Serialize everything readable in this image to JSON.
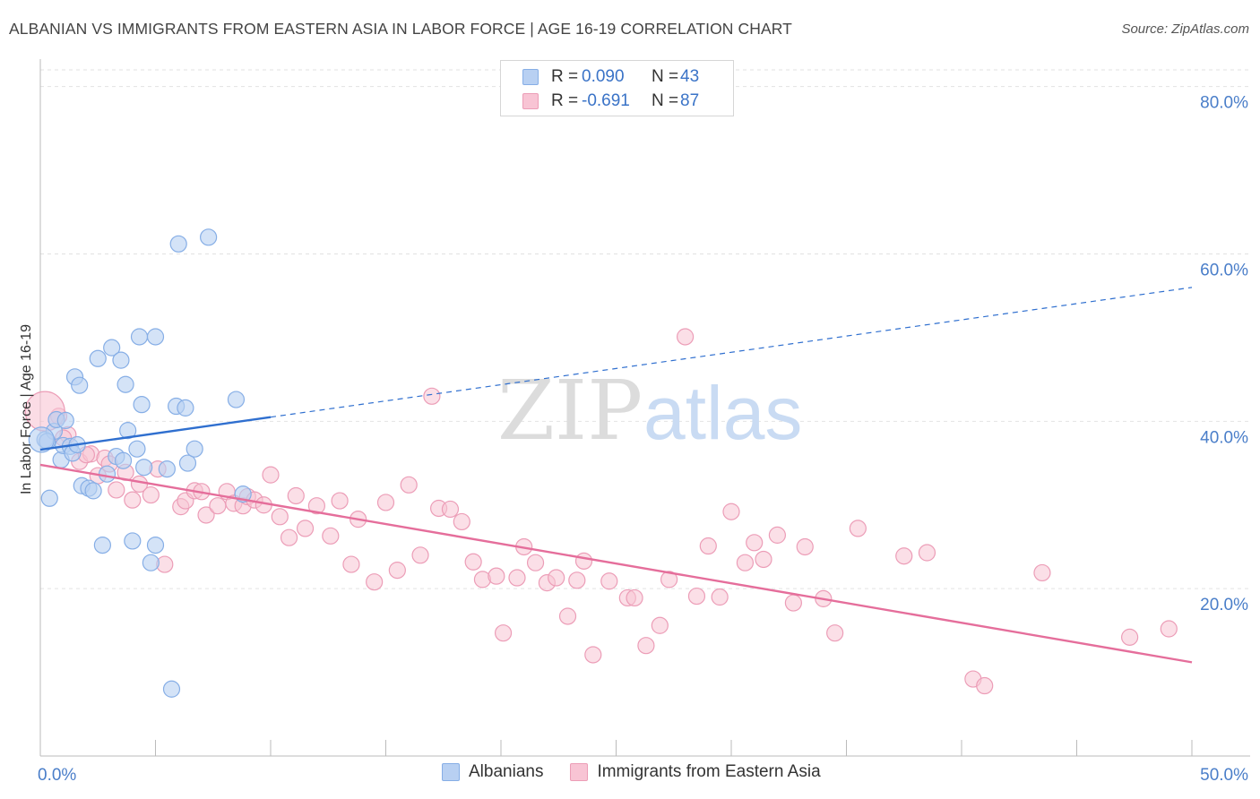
{
  "header": {
    "title": "ALBANIAN VS IMMIGRANTS FROM EASTERN ASIA IN LABOR FORCE | AGE 16-19 CORRELATION CHART",
    "source": "Source: ZipAtlas.com"
  },
  "watermark": {
    "part1": "ZIP",
    "part2": "atlas"
  },
  "legend": {
    "series": [
      {
        "r_label": "R =",
        "r_value": "0.090",
        "n_label": "N =",
        "n_value": "43"
      },
      {
        "r_label": "R =",
        "r_value": "-0.691",
        "n_label": "N =",
        "n_value": "87"
      }
    ]
  },
  "bottom_legend": {
    "albanians": "Albanians",
    "eastern_asia": "Immigrants from Eastern Asia"
  },
  "colors": {
    "albanians_fill": "#b8d0f2",
    "albanians_stroke": "#86aee6",
    "albanians_line": "#2f6fcf",
    "asia_fill": "#f8c4d4",
    "asia_stroke": "#ec9db7",
    "asia_line": "#e56e9b",
    "tick_label": "#4a7ec9",
    "grid": "#e2e2e2"
  },
  "chart_data": {
    "type": "scatter",
    "title": "ALBANIAN VS IMMIGRANTS FROM EASTERN ASIA IN LABOR FORCE | AGE 16-19 CORRELATION CHART",
    "xlabel": "",
    "ylabel": "In Labor Force | Age 16-19",
    "xlim": [
      0,
      50
    ],
    "ylim": [
      0,
      82
    ],
    "x_tick_labels": [
      "0.0%",
      "50.0%"
    ],
    "y_ticks": [
      20,
      40,
      60,
      80
    ],
    "y_tick_labels": [
      "20.0%",
      "40.0%",
      "60.0%",
      "80.0%"
    ],
    "grid": true,
    "legend_position": "top-center",
    "series": [
      {
        "name": "Albanians",
        "r": 0.09,
        "n": 43,
        "trend": {
          "x0": 0,
          "y0": 36.6,
          "x1": 10,
          "y1": 40.5,
          "dashed_to_x": 50,
          "dashed_to_y": 56
        },
        "points": [
          [
            0.2,
            37.8
          ],
          [
            0.4,
            30.8
          ],
          [
            0.6,
            38.8
          ],
          [
            0.7,
            40.2
          ],
          [
            0.9,
            35.4
          ],
          [
            1.0,
            37.1
          ],
          [
            1.1,
            40.1
          ],
          [
            1.3,
            37.0
          ],
          [
            1.4,
            36.2
          ],
          [
            1.5,
            45.3
          ],
          [
            1.7,
            44.3
          ],
          [
            1.8,
            32.3
          ],
          [
            2.1,
            32.0
          ],
          [
            2.3,
            31.7
          ],
          [
            2.5,
            47.5
          ],
          [
            2.7,
            25.2
          ],
          [
            2.9,
            33.7
          ],
          [
            3.1,
            48.8
          ],
          [
            3.3,
            35.8
          ],
          [
            3.5,
            47.3
          ],
          [
            3.6,
            35.3
          ],
          [
            3.7,
            44.4
          ],
          [
            3.8,
            38.9
          ],
          [
            4.0,
            25.7
          ],
          [
            4.2,
            36.7
          ],
          [
            4.3,
            50.1
          ],
          [
            4.4,
            42.0
          ],
          [
            4.5,
            34.5
          ],
          [
            4.8,
            23.1
          ],
          [
            5.0,
            25.2
          ],
          [
            5.0,
            50.1
          ],
          [
            5.5,
            34.3
          ],
          [
            5.7,
            8.0
          ],
          [
            5.9,
            41.8
          ],
          [
            6.0,
            61.2
          ],
          [
            6.3,
            41.6
          ],
          [
            6.4,
            35.0
          ],
          [
            6.7,
            36.7
          ],
          [
            7.3,
            62.0
          ],
          [
            8.5,
            42.6
          ],
          [
            8.8,
            31.3
          ],
          [
            0.3,
            37.6
          ],
          [
            1.6,
            37.2
          ]
        ],
        "big_point": [
          0.05,
          37.8
        ]
      },
      {
        "name": "Immigrants from Eastern Asia",
        "r": -0.691,
        "n": 87,
        "trend": {
          "x0": 0,
          "y0": 34.8,
          "x1": 50,
          "y1": 11.2
        },
        "points": [
          [
            0.8,
            40.6
          ],
          [
            1.2,
            38.4
          ],
          [
            1.7,
            35.2
          ],
          [
            2.2,
            36.1
          ],
          [
            2.5,
            33.5
          ],
          [
            2.8,
            35.6
          ],
          [
            3.0,
            34.9
          ],
          [
            3.3,
            31.8
          ],
          [
            3.7,
            33.9
          ],
          [
            4.0,
            30.6
          ],
          [
            4.3,
            32.5
          ],
          [
            4.8,
            31.2
          ],
          [
            5.1,
            34.3
          ],
          [
            5.4,
            22.9
          ],
          [
            6.1,
            29.8
          ],
          [
            6.3,
            30.5
          ],
          [
            6.7,
            31.7
          ],
          [
            7.0,
            31.6
          ],
          [
            7.2,
            28.8
          ],
          [
            7.7,
            29.9
          ],
          [
            8.1,
            31.6
          ],
          [
            8.4,
            30.2
          ],
          [
            8.8,
            29.9
          ],
          [
            9.0,
            31.0
          ],
          [
            9.3,
            30.6
          ],
          [
            9.7,
            30.0
          ],
          [
            10.0,
            33.6
          ],
          [
            10.4,
            28.6
          ],
          [
            10.8,
            26.1
          ],
          [
            11.1,
            31.1
          ],
          [
            11.5,
            27.2
          ],
          [
            12.0,
            29.9
          ],
          [
            12.6,
            26.3
          ],
          [
            13.0,
            30.5
          ],
          [
            13.5,
            22.9
          ],
          [
            13.8,
            28.3
          ],
          [
            14.5,
            20.8
          ],
          [
            15.0,
            30.3
          ],
          [
            15.5,
            22.2
          ],
          [
            16.0,
            32.4
          ],
          [
            16.5,
            24.0
          ],
          [
            17.0,
            43.0
          ],
          [
            17.3,
            29.6
          ],
          [
            17.8,
            29.5
          ],
          [
            18.3,
            28.0
          ],
          [
            18.8,
            23.2
          ],
          [
            19.2,
            21.1
          ],
          [
            19.8,
            21.5
          ],
          [
            20.1,
            14.7
          ],
          [
            20.7,
            21.3
          ],
          [
            21.0,
            25.0
          ],
          [
            21.5,
            23.1
          ],
          [
            22.0,
            20.7
          ],
          [
            22.4,
            21.3
          ],
          [
            22.9,
            16.7
          ],
          [
            23.3,
            21.0
          ],
          [
            23.6,
            23.3
          ],
          [
            24.0,
            12.1
          ],
          [
            24.7,
            20.9
          ],
          [
            25.5,
            18.9
          ],
          [
            25.8,
            18.9
          ],
          [
            26.3,
            13.2
          ],
          [
            26.9,
            15.6
          ],
          [
            27.3,
            21.1
          ],
          [
            28.0,
            50.1
          ],
          [
            28.5,
            19.1
          ],
          [
            29.0,
            25.1
          ],
          [
            29.5,
            19.0
          ],
          [
            30.0,
            29.2
          ],
          [
            30.6,
            23.1
          ],
          [
            31.0,
            25.5
          ],
          [
            31.4,
            23.5
          ],
          [
            32.0,
            26.4
          ],
          [
            32.7,
            18.3
          ],
          [
            33.2,
            25.0
          ],
          [
            34.0,
            18.8
          ],
          [
            34.5,
            14.7
          ],
          [
            35.5,
            27.2
          ],
          [
            37.5,
            23.9
          ],
          [
            38.5,
            24.3
          ],
          [
            40.5,
            9.2
          ],
          [
            41.0,
            8.4
          ],
          [
            43.5,
            21.9
          ],
          [
            47.3,
            14.2
          ],
          [
            49.0,
            15.2
          ],
          [
            1.0,
            38.0
          ],
          [
            2.0,
            36.0
          ]
        ],
        "big_point": [
          0.2,
          41.2
        ]
      }
    ]
  }
}
